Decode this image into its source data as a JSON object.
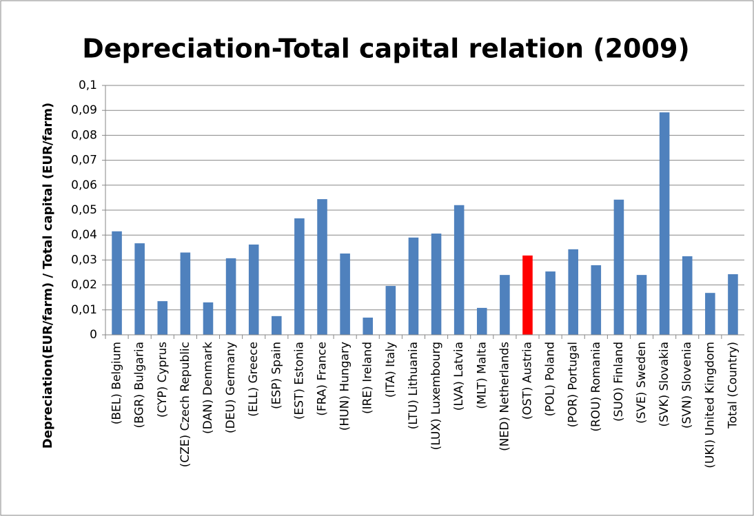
{
  "chart_data": {
    "type": "bar",
    "title": "Depreciation-Total capital relation (2009)",
    "y_label": "Depreciation(EUR/farm) / Total capital (EUR/farm)",
    "categories": [
      "(BEL) Belgium",
      "(BGR) Bulgaria",
      "(CYP) Cyprus",
      "(CZE) Czech Republic",
      "(DAN) Denmark",
      "(DEU) Germany",
      "(ELL) Greece",
      "(ESP) Spain",
      "(EST) Estonia",
      "(FRA) France",
      "(HUN) Hungary",
      "(IRE) Ireland",
      "(ITA) Italy",
      "(LTU) Lithuania",
      "(LUX) Luxembourg",
      "(LVA) Latvia",
      "(MLT) Malta",
      "(NED) Netherlands",
      "(OST) Austria",
      "(POL) Poland",
      "(POR) Portugal",
      "(ROU) Romania",
      "(SUO) Finland",
      "(SVE) Sweden",
      "(SVK) Slovakia",
      "(SVN) Slovenia",
      "(UKI) United Kingdom",
      "Total (Country)"
    ],
    "values": [
      0.0415,
      0.0367,
      0.0135,
      0.033,
      0.013,
      0.0307,
      0.0362,
      0.0075,
      0.0467,
      0.0544,
      0.0326,
      0.0069,
      0.0196,
      0.039,
      0.0406,
      0.052,
      0.0108,
      0.024,
      0.0318,
      0.0254,
      0.0343,
      0.0279,
      0.0542,
      0.024,
      0.0892,
      0.0315,
      0.0168,
      0.0243
    ],
    "colors": [
      "#4f81bd",
      "#4f81bd",
      "#4f81bd",
      "#4f81bd",
      "#4f81bd",
      "#4f81bd",
      "#4f81bd",
      "#4f81bd",
      "#4f81bd",
      "#4f81bd",
      "#4f81bd",
      "#4f81bd",
      "#4f81bd",
      "#4f81bd",
      "#4f81bd",
      "#4f81bd",
      "#4f81bd",
      "#4f81bd",
      "#ff0000",
      "#4f81bd",
      "#4f81bd",
      "#4f81bd",
      "#4f81bd",
      "#4f81bd",
      "#4f81bd",
      "#4f81bd",
      "#4f81bd",
      "#4f81bd"
    ],
    "ylim": [
      0,
      0.1
    ],
    "yticks": [
      0,
      {
        "value": 0.01,
        "label": "0,01"
      },
      {
        "value": 0.02,
        "label": "0,02"
      },
      {
        "value": 0.03,
        "label": "0,03"
      },
      {
        "value": 0.04,
        "label": "0,04"
      },
      {
        "value": 0.05,
        "label": "0,05"
      },
      {
        "value": 0.06,
        "label": "0,06"
      },
      {
        "value": 0.07,
        "label": "0,07"
      },
      {
        "value": 0.08,
        "label": "0,08"
      },
      {
        "value": 0.09,
        "label": "0,09"
      },
      {
        "value": 0.1,
        "label": "0,1"
      }
    ],
    "grid": true
  }
}
